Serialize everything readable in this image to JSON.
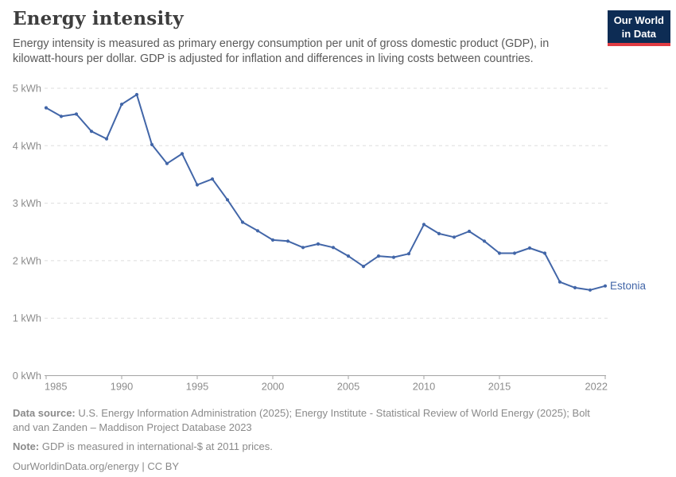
{
  "header": {
    "logo": {
      "line1": "Our World",
      "line2": "in Data"
    }
  },
  "chart_data": {
    "type": "line",
    "title": "Energy intensity",
    "subtitle": "Energy intensity is measured as primary energy consumption per unit of gross domestic product (GDP), in kilowatt-hours per dollar. GDP is adjusted for inflation and differences in living costs between countries.",
    "xlabel": "",
    "ylabel": "",
    "unit": "kWh",
    "xlim": [
      1985,
      2022
    ],
    "ylim": [
      0,
      5
    ],
    "grid": "horizontal-dashed",
    "legend_position": "label-at-line-end",
    "xticks": [
      1985,
      1990,
      1995,
      2000,
      2005,
      2010,
      2015,
      2022
    ],
    "yticks": [
      {
        "value": 0,
        "label": "0 kWh"
      },
      {
        "value": 1,
        "label": "1 kWh"
      },
      {
        "value": 2,
        "label": "2 kWh"
      },
      {
        "value": 3,
        "label": "3 kWh"
      },
      {
        "value": 4,
        "label": "4 kWh"
      },
      {
        "value": 5,
        "label": "5 kWh"
      }
    ],
    "series": [
      {
        "name": "Estonia",
        "color": "#4266a8",
        "years": [
          1985,
          1986,
          1987,
          1988,
          1989,
          1990,
          1991,
          1992,
          1993,
          1994,
          1995,
          1996,
          1997,
          1998,
          1999,
          2000,
          2001,
          2002,
          2003,
          2004,
          2005,
          2006,
          2007,
          2008,
          2009,
          2010,
          2011,
          2012,
          2013,
          2014,
          2015,
          2016,
          2017,
          2018,
          2019,
          2020,
          2021,
          2022
        ],
        "values": [
          4.66,
          4.51,
          4.55,
          4.25,
          4.12,
          4.72,
          4.89,
          4.02,
          3.69,
          3.86,
          3.32,
          3.42,
          3.06,
          2.67,
          2.52,
          2.36,
          2.34,
          2.23,
          2.29,
          2.23,
          2.08,
          1.9,
          2.08,
          2.06,
          2.12,
          2.63,
          2.47,
          2.41,
          2.51,
          2.34,
          2.13,
          2.13,
          2.22,
          2.13,
          1.63,
          1.53,
          1.49,
          1.56
        ]
      }
    ]
  },
  "footer": {
    "data_source_label": "Data source:",
    "data_source": "U.S. Energy Information Administration (2025); Energy Institute - Statistical Review of World Energy (2025); Bolt and van Zanden – Maddison Project Database 2023",
    "note_label": "Note:",
    "note": "GDP is measured in international-$ at 2011 prices.",
    "license": "OurWorldinData.org/energy | CC BY"
  },
  "colors": {
    "line": "#4266a8",
    "logo_background": "#0d2c54",
    "logo_underline": "#e03b42",
    "grid": "#dedede",
    "axis": "#a3a3a3",
    "tick_text": "#8c8c8c"
  }
}
